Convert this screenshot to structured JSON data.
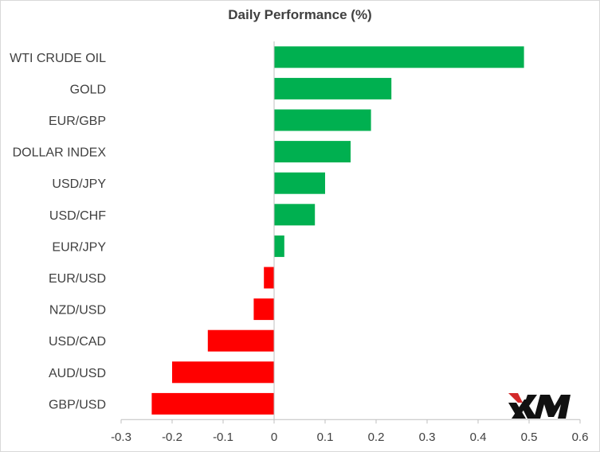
{
  "chart_data": {
    "type": "bar",
    "orientation": "horizontal",
    "title": "Daily Performance  (%)",
    "xlabel": "",
    "ylabel": "",
    "categories": [
      "WTI CRUDE OIL",
      "GOLD",
      "EUR/GBP",
      "DOLLAR INDEX",
      "USD/JPY",
      "USD/CHF",
      "EUR/JPY",
      "EUR/USD",
      "NZD/USD",
      "USD/CAD",
      "AUD/USD",
      "GBP/USD"
    ],
    "values": [
      0.49,
      0.23,
      0.19,
      0.15,
      0.1,
      0.08,
      0.02,
      -0.02,
      -0.04,
      -0.13,
      -0.2,
      -0.24
    ],
    "xlim": [
      -0.3,
      0.6
    ],
    "ticks": [
      -0.3,
      -0.2,
      -0.1,
      0,
      0.1,
      0.2,
      0.3,
      0.4,
      0.5,
      0.6
    ],
    "tick_labels": [
      "-0.3",
      "-0.2",
      "-0.1",
      "0",
      "0.1",
      "0.2",
      "0.3",
      "0.4",
      "0.5",
      "0.6"
    ],
    "grid": false,
    "legend": "none",
    "colors": {
      "positive": "#00b050",
      "negative": "#ff0000",
      "axis": "#bfbfbf",
      "text": "#404040"
    }
  },
  "logo": {
    "text": "XM",
    "icon": "xm-logo"
  }
}
